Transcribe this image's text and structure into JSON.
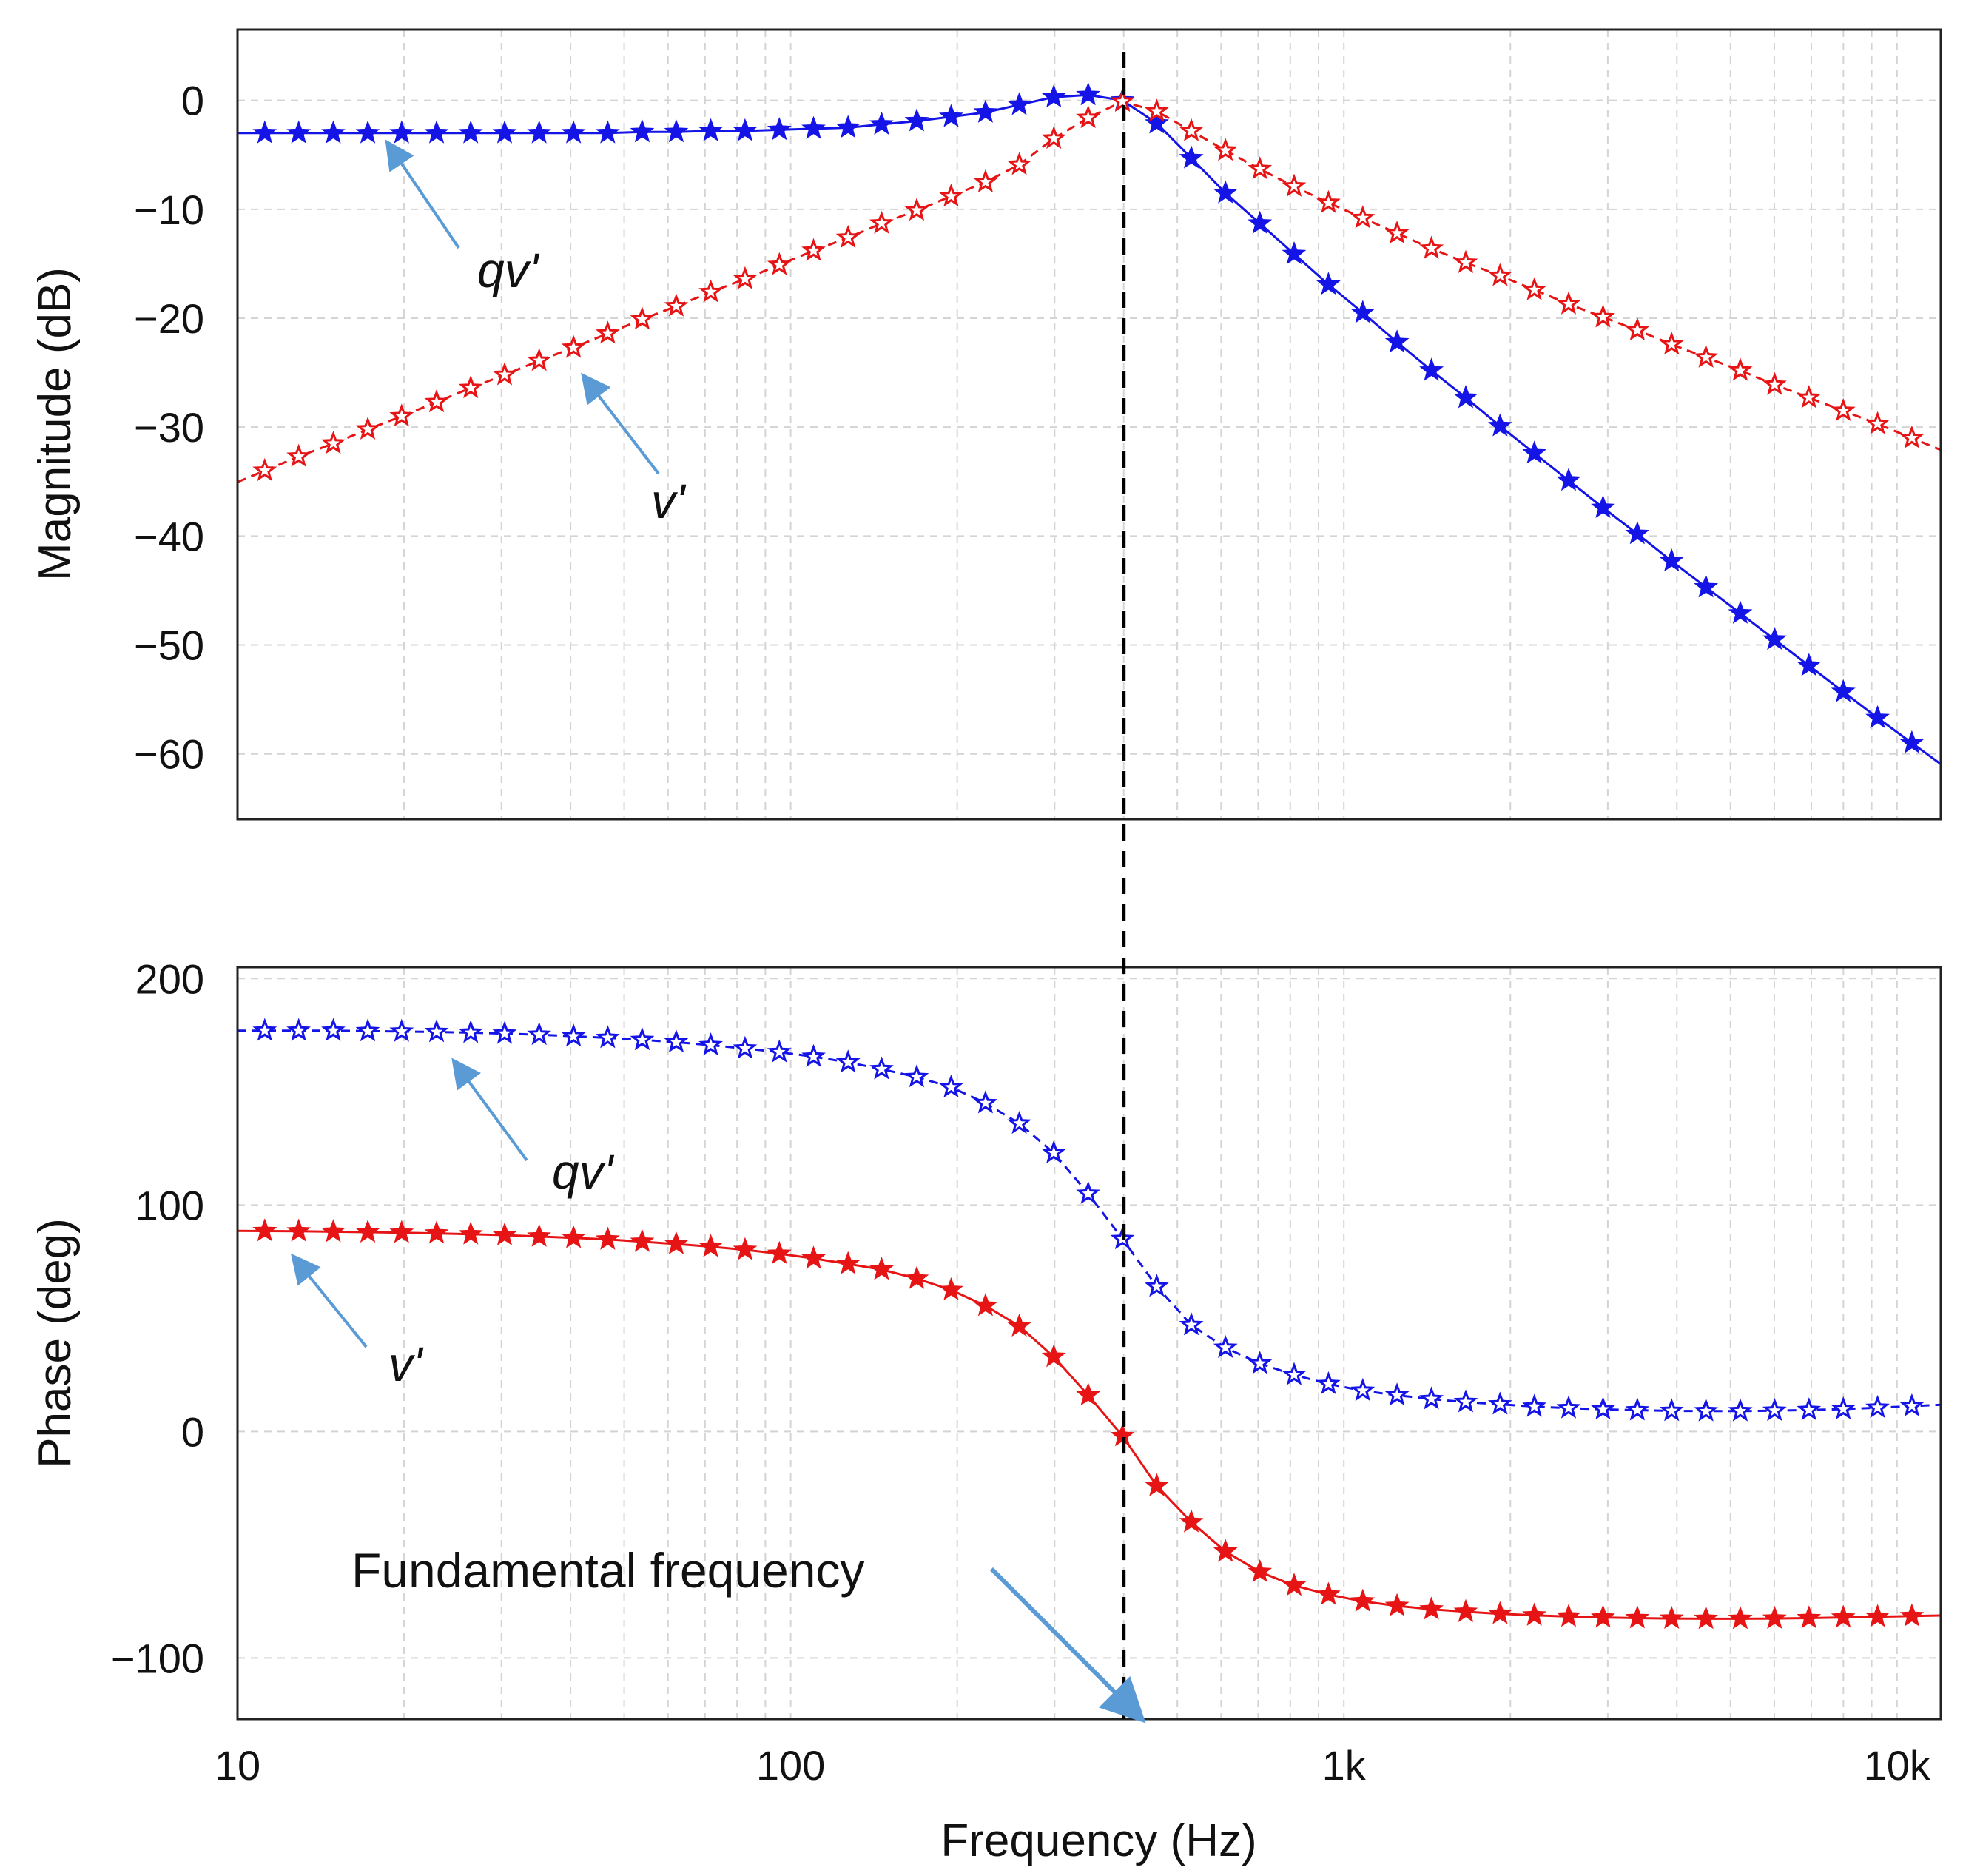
{
  "chart_data": {
    "type": "line",
    "x_scale": "log",
    "xlabel": "Frequency (Hz)",
    "xlim": [
      10,
      12000
    ],
    "x_ticks": [
      {
        "value": 10,
        "label": "10"
      },
      {
        "value": 100,
        "label": "100"
      },
      {
        "value": 1000,
        "label": "1k"
      },
      {
        "value": 10000,
        "label": "10k"
      }
    ],
    "marker_line": {
      "x": 400,
      "style": "dashed",
      "color": "#000000"
    },
    "x": [
      11.2,
      12.9,
      14.9,
      17.2,
      19.8,
      22.9,
      26.4,
      30.4,
      35.1,
      40.5,
      46.7,
      53.9,
      62.1,
      71.7,
      82.7,
      95.4,
      110,
      127,
      146,
      169,
      195,
      225,
      259,
      299,
      345,
      398,
      459,
      530,
      611,
      705,
      813,
      938,
      1082,
      1248,
      1440,
      1661,
      1916,
      2210,
      2549,
      2941,
      3393,
      3914,
      4515,
      5208,
      6008,
      6931,
      7996,
      9224,
      10640
    ],
    "panels": [
      {
        "id": "magnitude",
        "ylabel": "Magnitude (dB)",
        "ylim": [
          -66,
          6.5
        ],
        "y_ticks": [
          0,
          -10,
          -20,
          -30,
          -40,
          -50,
          -60
        ],
        "y_tick_labels": [
          "0",
          "−10",
          "−20",
          "−30",
          "−40",
          "−50",
          "−60"
        ],
        "series": [
          {
            "name": "qv'",
            "color": "#1414e6",
            "style": "solid",
            "marker": "star",
            "values": [
              -3.0,
              -3.0,
              -3.0,
              -3.0,
              -3.0,
              -3.0,
              -3.0,
              -3.0,
              -3.0,
              -3.0,
              -3.0,
              -2.9,
              -2.9,
              -2.8,
              -2.8,
              -2.7,
              -2.6,
              -2.5,
              -2.2,
              -1.9,
              -1.5,
              -1.1,
              -0.4,
              0.3,
              0.5,
              0.0,
              -2.1,
              -5.3,
              -8.5,
              -11.3,
              -14.1,
              -16.9,
              -19.5,
              -22.2,
              -24.8,
              -27.3,
              -29.9,
              -32.4,
              -34.9,
              -37.4,
              -39.8,
              -42.3,
              -44.7,
              -47.1,
              -49.5,
              -51.9,
              -54.3,
              -56.7,
              -59.0
            ]
          },
          {
            "name": "v'",
            "color": "#e61414",
            "style": "dashed",
            "marker": "star",
            "values": [
              -34.0,
              -32.7,
              -31.5,
              -30.2,
              -29.0,
              -27.7,
              -26.4,
              -25.2,
              -23.9,
              -22.7,
              -21.4,
              -20.1,
              -18.9,
              -17.6,
              -16.4,
              -15.1,
              -13.8,
              -12.6,
              -11.3,
              -10.1,
              -8.8,
              -7.5,
              -5.9,
              -3.5,
              -1.6,
              -0.1,
              -1.0,
              -2.8,
              -4.6,
              -6.3,
              -7.9,
              -9.4,
              -10.8,
              -12.2,
              -13.6,
              -14.9,
              -16.1,
              -17.4,
              -18.7,
              -19.9,
              -21.1,
              -22.4,
              -23.6,
              -24.8,
              -26.1,
              -27.3,
              -28.5,
              -29.7,
              -31.0
            ]
          }
        ],
        "annotations": [
          {
            "label": "qv'",
            "series": "qv'"
          },
          {
            "label": "v'",
            "series": "v'"
          }
        ]
      },
      {
        "id": "phase",
        "ylabel": "Phase (deg)",
        "ylim": [
          -127,
          205
        ],
        "y_ticks": [
          200,
          100,
          0,
          -100
        ],
        "y_tick_labels": [
          "200",
          "100",
          "0",
          "−100"
        ],
        "series": [
          {
            "name": "qv'",
            "color": "#1414e6",
            "style": "dashed",
            "marker": "star",
            "values": [
              177.0,
              177.0,
              177.0,
              176.8,
              176.6,
              176.4,
              176.1,
              175.7,
              175.2,
              174.5,
              173.8,
              172.9,
              171.9,
              170.6,
              169.1,
              167.5,
              165.5,
              163.0,
              160.0,
              156.5,
              152.0,
              145.0,
              136.0,
              123.0,
              105.0,
              85.0,
              64.0,
              47.0,
              37.0,
              30.0,
              25.0,
              21.0,
              18.0,
              16.0,
              14.3,
              13.0,
              12.0,
              11.0,
              10.3,
              9.8,
              9.4,
              9.1,
              9.0,
              9.0,
              9.2,
              9.5,
              9.9,
              10.5,
              11.2
            ]
          },
          {
            "name": "v'",
            "color": "#e61414",
            "style": "solid",
            "marker": "star",
            "values": [
              88.5,
              88.4,
              88.2,
              88.0,
              87.8,
              87.5,
              87.1,
              86.7,
              86.1,
              85.5,
              84.8,
              83.8,
              82.8,
              81.6,
              80.2,
              78.5,
              76.4,
              74.0,
              71.5,
              67.5,
              62.5,
              55.5,
              46.5,
              33.0,
              16.0,
              -2.0,
              -24.0,
              -40.0,
              -53.0,
              -62.0,
              -68.0,
              -72.0,
              -75.0,
              -77.0,
              -78.5,
              -79.6,
              -80.5,
              -81.2,
              -81.7,
              -82.1,
              -82.4,
              -82.6,
              -82.7,
              -82.7,
              -82.6,
              -82.4,
              -82.1,
              -81.8,
              -81.5
            ]
          }
        ],
        "annotations": [
          {
            "label": "qv'",
            "series": "qv'"
          },
          {
            "label": "v'",
            "series": "v'"
          },
          {
            "label": "Fundamental frequency",
            "points_to": "marker_line"
          }
        ]
      }
    ]
  },
  "colors": {
    "arrow": "#5b9bd5",
    "grid": "#d4d4d4",
    "frame": "#222222"
  }
}
